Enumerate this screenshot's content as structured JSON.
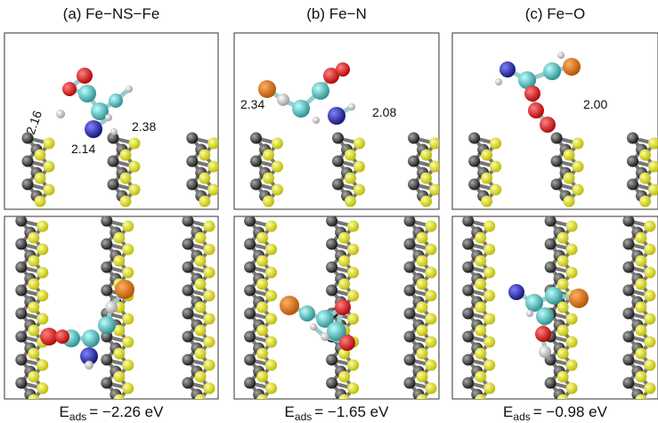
{
  "panels": [
    {
      "title": "(a) Fe−NS−Fe",
      "distances": [
        "2.16",
        "2.38",
        "2.14"
      ],
      "energy": {
        "symbol": "E",
        "subscript": "ads",
        "value": "= −2.26 eV"
      }
    },
    {
      "title": "(b) Fe−N",
      "distances": [
        "2.34",
        "2.08"
      ],
      "energy": {
        "symbol": "E",
        "subscript": "ads",
        "value": "= −1.65 eV"
      }
    },
    {
      "title": "(c) Fe−O",
      "distances": [
        "2.00"
      ],
      "energy": {
        "symbol": "E",
        "subscript": "ads",
        "value": "= −0.98 eV"
      }
    }
  ]
}
